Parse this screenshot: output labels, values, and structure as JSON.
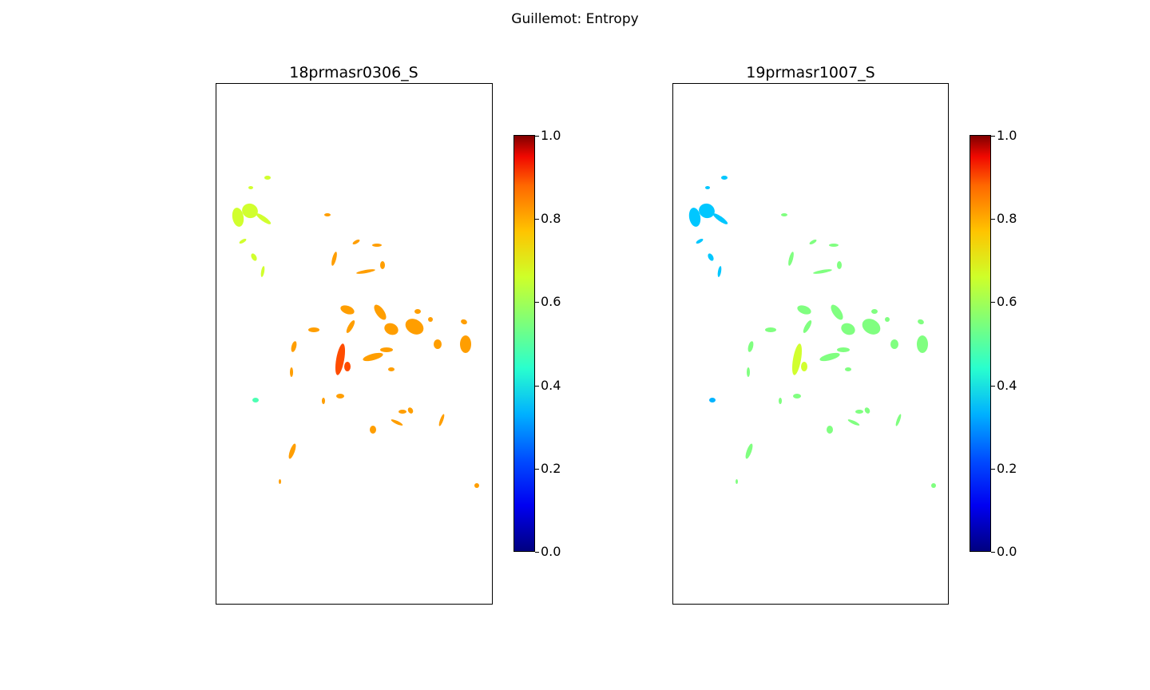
{
  "figure": {
    "suptitle": "Guillemot: Entropy"
  },
  "chart_data": [
    {
      "type": "heatmap",
      "title": "18prmasr0306_S",
      "colormap": "jet",
      "colorbar": {
        "range": [
          0.0,
          1.0
        ],
        "ticks": [
          "0.0",
          "0.2",
          "0.4",
          "0.6",
          "0.8",
          "1.0"
        ]
      },
      "xlabel": "",
      "ylabel": "",
      "value_estimates": {
        "northwest_patches": 0.58,
        "central_patches": 0.72,
        "core_patch": 0.8,
        "isolated_west_patch": 0.45
      },
      "grid": false
    },
    {
      "type": "heatmap",
      "title": "19prmasr1007_S",
      "colormap": "jet",
      "colorbar": {
        "range": [
          0.0,
          1.0
        ],
        "ticks": [
          "0.0",
          "0.2",
          "0.4",
          "0.6",
          "0.8",
          "1.0"
        ]
      },
      "xlabel": "",
      "ylabel": "",
      "value_estimates": {
        "northwest_patches": 0.32,
        "central_patches": 0.5,
        "core_patch": 0.58,
        "isolated_west_patch": 0.3
      },
      "grid": false
    }
  ]
}
